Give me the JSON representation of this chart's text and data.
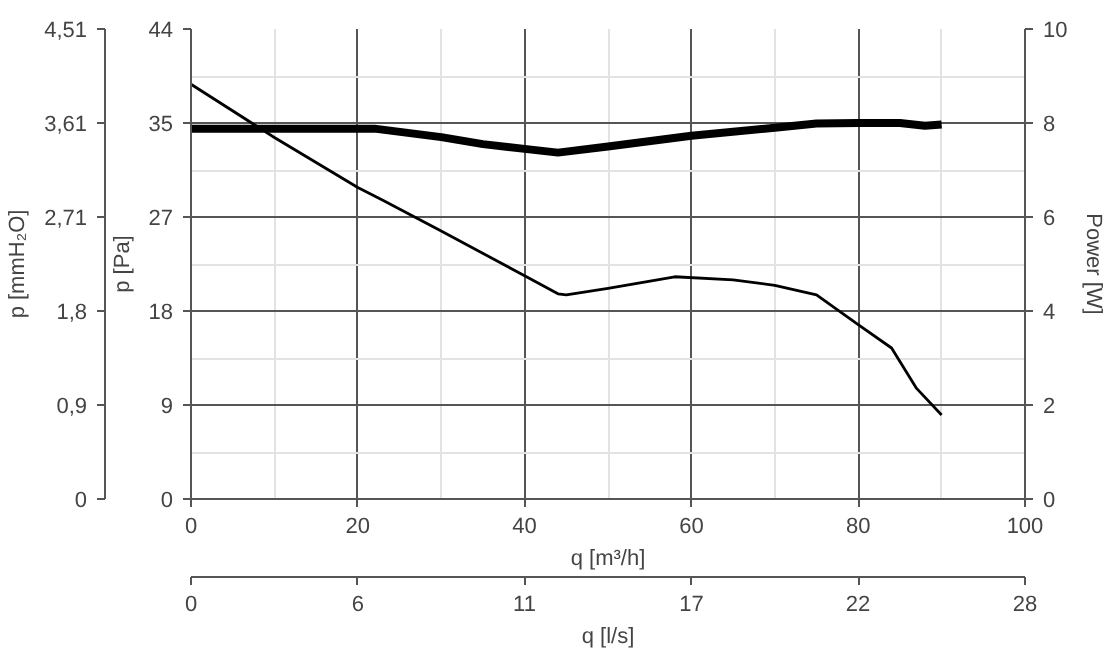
{
  "chart_data": {
    "type": "line",
    "xlabel": "q [m³/h]",
    "ylabel": "p [Pa]",
    "y2label": "Power [W]",
    "y3label": "p [mmH₂O]",
    "x2label": "q [l/s]",
    "xlim": [
      0,
      100
    ],
    "xticks": [
      0,
      20,
      40,
      60,
      80,
      100
    ],
    "ylim": [
      0,
      44.2
    ],
    "yticks": [
      0,
      {
        "value": 8.84,
        "label": "9"
      },
      {
        "value": 17.68,
        "label": "18"
      },
      {
        "value": 26.52,
        "label": "27"
      },
      {
        "value": 35.36,
        "label": "35"
      },
      {
        "value": 44.2,
        "label": "44"
      }
    ],
    "y2lim": [
      0,
      10
    ],
    "y2ticks": [
      0,
      2,
      4,
      6,
      8,
      10
    ],
    "y3lim": [
      0,
      4.51
    ],
    "y3ticks": [
      0,
      {
        "value": 0.902,
        "label": "0,9"
      },
      {
        "value": 1.804,
        "label": "1,8"
      },
      {
        "value": 2.706,
        "label": "2,71"
      },
      {
        "value": 3.608,
        "label": "3,61"
      },
      {
        "value": 4.51,
        "label": "4,51"
      }
    ],
    "x2lim": [
      0,
      27.78
    ],
    "x2ticks": [
      0,
      {
        "value": 5.556,
        "label": "6"
      },
      {
        "value": 11.11,
        "label": "11"
      },
      {
        "value": 16.67,
        "label": "17"
      },
      {
        "value": 22.22,
        "label": "22"
      },
      {
        "value": 27.78,
        "label": "28"
      }
    ],
    "grid": true,
    "marker": "none",
    "line_style": "solid",
    "series": [
      {
        "color": "#000000",
        "x": [
          0,
          10,
          20,
          23,
          30,
          40,
          44,
          45,
          50,
          58,
          65,
          70,
          75,
          80,
          84,
          87,
          90
        ],
        "values": [
          39.0,
          34.0,
          29.3,
          28.1,
          25.2,
          21.0,
          19.3,
          19.2,
          19.8,
          20.9,
          20.6,
          20.1,
          19.2,
          16.4,
          14.2,
          10.4,
          7.9
        ]
      },
      {
        "color": "#000000",
        "axis": "y2",
        "x": [
          0,
          10,
          22,
          30,
          35,
          40,
          44,
          50,
          60,
          70,
          75,
          80,
          85,
          88,
          90
        ],
        "values": [
          7.88,
          7.88,
          7.88,
          7.7,
          7.55,
          7.45,
          7.37,
          7.5,
          7.73,
          7.9,
          7.99,
          8.0,
          8.0,
          7.94,
          7.97
        ]
      }
    ]
  }
}
